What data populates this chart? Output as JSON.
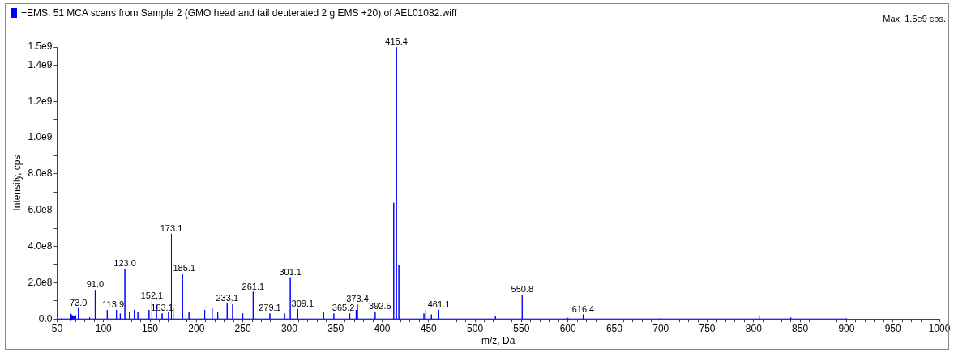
{
  "chart_data": {
    "type": "line",
    "title": "+EMS: 51 MCA scans from Sample 2 (GMO head and tail deuterated 2 g EMS +20) of AEL01082.wiff",
    "xlabel": "m/z, Da",
    "ylabel": "Intensity, cps",
    "grid": false,
    "legend": false,
    "marker": "none",
    "line_style": "solid",
    "xlim": [
      50,
      1000
    ],
    "xticks": [
      50,
      {
        "value": 60,
        "label": null
      },
      {
        "value": 70,
        "label": null
      },
      {
        "value": 80,
        "label": null
      },
      {
        "value": 90,
        "label": null
      },
      100,
      {
        "value": 110,
        "label": null
      },
      {
        "value": 120,
        "label": null
      },
      {
        "value": 130,
        "label": null
      },
      {
        "value": 140,
        "label": null
      },
      150,
      {
        "value": 160,
        "label": null
      },
      {
        "value": 170,
        "label": null
      },
      {
        "value": 180,
        "label": null
      },
      {
        "value": 190,
        "label": null
      },
      200,
      {
        "value": 210,
        "label": null
      },
      {
        "value": 220,
        "label": null
      },
      {
        "value": 230,
        "label": null
      },
      {
        "value": 240,
        "label": null
      },
      250,
      {
        "value": 260,
        "label": null
      },
      {
        "value": 270,
        "label": null
      },
      {
        "value": 280,
        "label": null
      },
      {
        "value": 290,
        "label": null
      },
      300,
      {
        "value": 310,
        "label": null
      },
      {
        "value": 320,
        "label": null
      },
      {
        "value": 330,
        "label": null
      },
      {
        "value": 340,
        "label": null
      },
      350,
      {
        "value": 360,
        "label": null
      },
      {
        "value": 370,
        "label": null
      },
      {
        "value": 380,
        "label": null
      },
      {
        "value": 390,
        "label": null
      },
      400,
      {
        "value": 410,
        "label": null
      },
      {
        "value": 420,
        "label": null
      },
      {
        "value": 430,
        "label": null
      },
      {
        "value": 440,
        "label": null
      },
      450,
      {
        "value": 460,
        "label": null
      },
      {
        "value": 470,
        "label": null
      },
      {
        "value": 480,
        "label": null
      },
      {
        "value": 490,
        "label": null
      },
      500,
      {
        "value": 510,
        "label": null
      },
      {
        "value": 520,
        "label": null
      },
      {
        "value": 530,
        "label": null
      },
      {
        "value": 540,
        "label": null
      },
      550,
      {
        "value": 560,
        "label": null
      },
      {
        "value": 570,
        "label": null
      },
      {
        "value": 580,
        "label": null
      },
      {
        "value": 590,
        "label": null
      },
      600,
      {
        "value": 610,
        "label": null
      },
      {
        "value": 620,
        "label": null
      },
      {
        "value": 630,
        "label": null
      },
      {
        "value": 640,
        "label": null
      },
      650,
      {
        "value": 660,
        "label": null
      },
      {
        "value": 670,
        "label": null
      },
      {
        "value": 680,
        "label": null
      },
      {
        "value": 690,
        "label": null
      },
      700,
      {
        "value": 710,
        "label": null
      },
      {
        "value": 720,
        "label": null
      },
      {
        "value": 730,
        "label": null
      },
      {
        "value": 740,
        "label": null
      },
      750,
      {
        "value": 760,
        "label": null
      },
      {
        "value": 770,
        "label": null
      },
      {
        "value": 780,
        "label": null
      },
      {
        "value": 790,
        "label": null
      },
      800,
      {
        "value": 810,
        "label": null
      },
      {
        "value": 820,
        "label": null
      },
      {
        "value": 830,
        "label": null
      },
      {
        "value": 840,
        "label": null
      },
      850,
      {
        "value": 860,
        "label": null
      },
      {
        "value": 870,
        "label": null
      },
      {
        "value": 880,
        "label": null
      },
      {
        "value": 890,
        "label": null
      },
      900,
      {
        "value": 910,
        "label": null
      },
      {
        "value": 920,
        "label": null
      },
      {
        "value": 930,
        "label": null
      },
      {
        "value": 940,
        "label": null
      },
      950,
      {
        "value": 960,
        "label": null
      },
      {
        "value": 970,
        "label": null
      },
      {
        "value": 980,
        "label": null
      },
      {
        "value": 990,
        "label": null
      },
      1000
    ],
    "ylim": [
      0,
      1500000000
    ],
    "yticks": [
      {
        "value": 0,
        "label": "0.0"
      },
      {
        "value": 100000000,
        "label": null
      },
      {
        "value": 200000000,
        "label": "2.0e8"
      },
      {
        "value": 300000000,
        "label": null
      },
      {
        "value": 400000000,
        "label": "4.0e8"
      },
      {
        "value": 500000000,
        "label": null
      },
      {
        "value": 600000000,
        "label": "6.0e8"
      },
      {
        "value": 700000000,
        "label": null
      },
      {
        "value": 800000000,
        "label": "8.0e8"
      },
      {
        "value": 900000000,
        "label": null
      },
      {
        "value": 1000000000,
        "label": "1.0e9"
      },
      {
        "value": 1100000000,
        "label": null
      },
      {
        "value": 1200000000,
        "label": "1.2e9"
      },
      {
        "value": 1300000000,
        "label": null
      },
      {
        "value": 1400000000,
        "label": "1.4e9"
      },
      {
        "value": 1500000000,
        "label": "1.5e9"
      }
    ],
    "series": [
      {
        "color": "#0000ff",
        "x": [
          50,
          55,
          55,
          55,
          68,
          68,
          68,
          70,
          70,
          70,
          73,
          73,
          73,
          85,
          85,
          85,
          91,
          91,
          91,
          104,
          104,
          104,
          113.9,
          113.9,
          113.9,
          118,
          118,
          118,
          123,
          123,
          123,
          128,
          128,
          128,
          133,
          133,
          133,
          137,
          137,
          137,
          149,
          149,
          149,
          152.1,
          152.1,
          152.1,
          157,
          157,
          157,
          163.1,
          163.1,
          163.1,
          170,
          170,
          170,
          173.1,
          173.1,
          173.1,
          175,
          175,
          175,
          185.1,
          185.1,
          185.1,
          192,
          192,
          192,
          209,
          209,
          209,
          217,
          217,
          217,
          223,
          223,
          223,
          233.1,
          233.1,
          233.1,
          239,
          239,
          239,
          250,
          250,
          250,
          261.1,
          261.1,
          261.1,
          279.1,
          279.1,
          279.1,
          295,
          295,
          295,
          301.1,
          301.1,
          301.1,
          309.1,
          309.1,
          309.1,
          318,
          318,
          318,
          337,
          337,
          337,
          348,
          348,
          348,
          365.2,
          365.2,
          365.2,
          372,
          372,
          372,
          373.4,
          373.4,
          373.4,
          392.5,
          392.5,
          392.5,
          412.5,
          412.5,
          412.5,
          415.4,
          415.4,
          415.4,
          418,
          418,
          418,
          445,
          445,
          445,
          447,
          447,
          447,
          453,
          453,
          453,
          461.1,
          461.1,
          461.1,
          522,
          522,
          522,
          550.8,
          550.8,
          550.8,
          600,
          600,
          600,
          616.4,
          616.4,
          616.4,
          700,
          700,
          700,
          806,
          806,
          806,
          840,
          840,
          840,
          900,
          900,
          900
        ],
        "values": [
          0,
          0,
          5000000,
          0,
          0,
          15000000,
          0,
          0,
          20000000,
          0,
          0,
          60000000,
          0,
          0,
          10000000,
          0,
          0,
          160000000,
          0,
          0,
          50000000,
          0,
          0,
          50000000,
          0,
          0,
          30000000,
          0,
          0,
          276000000,
          0,
          0,
          40000000,
          0,
          0,
          50000000,
          0,
          0,
          40000000,
          0,
          0,
          50000000,
          0,
          0,
          100000000,
          0,
          0,
          80000000,
          0,
          0,
          30000000,
          0,
          0,
          40000000,
          0,
          0,
          470000000,
          0,
          0,
          60000000,
          0,
          0,
          250000000,
          0,
          0,
          40000000,
          0,
          0,
          50000000,
          0,
          0,
          60000000,
          0,
          0,
          40000000,
          0,
          0,
          85000000,
          0,
          0,
          80000000,
          0,
          0,
          30000000,
          0,
          0,
          150000000,
          0,
          0,
          30000000,
          0,
          0,
          30000000,
          0,
          0,
          230000000,
          0,
          0,
          55000000,
          0,
          0,
          30000000,
          0,
          0,
          40000000,
          0,
          0,
          30000000,
          0,
          0,
          30000000,
          0,
          0,
          50000000,
          0,
          0,
          80000000,
          0,
          0,
          40000000,
          0,
          0,
          640000000,
          0,
          0,
          1500000000,
          0,
          0,
          300000000,
          0,
          0,
          30000000,
          0,
          0,
          50000000,
          0,
          0,
          25000000,
          0,
          0,
          50000000,
          0,
          0,
          15000000,
          0,
          0,
          135000000,
          0,
          0,
          6000000,
          0,
          0,
          25000000,
          0,
          0,
          5000000,
          0,
          0,
          20000000,
          0,
          0,
          8000000,
          0,
          0,
          3000000,
          0
        ]
      }
    ],
    "annotations": [
      "Max. 1.5e9 cps.",
      {
        "text": "73.0",
        "x": 73,
        "y": 60000000
      },
      {
        "text": "91.0",
        "x": 91,
        "y": 160000000
      },
      {
        "text": "113.9",
        "x": 113.9,
        "y": 50000000
      },
      {
        "text": "123.0",
        "x": 123,
        "y": 276000000
      },
      {
        "text": "152.1",
        "x": 152.1,
        "y": 100000000
      },
      {
        "text": "163.1",
        "x": 163.1,
        "y": 30000000
      },
      {
        "text": "173.1",
        "x": 173.1,
        "y": 470000000
      },
      {
        "text": "185.1",
        "x": 185.1,
        "y": 250000000
      },
      {
        "text": "233.1",
        "x": 233.1,
        "y": 85000000
      },
      {
        "text": "261.1",
        "x": 261.1,
        "y": 150000000
      },
      {
        "text": "279.1",
        "x": 279.1,
        "y": 30000000
      },
      {
        "text": "301.1",
        "x": 301.1,
        "y": 230000000
      },
      {
        "text": "309.1",
        "x": 309.1,
        "y": 55000000
      },
      {
        "text": "365.2",
        "x": 365.2,
        "y": 30000000
      },
      {
        "text": "373.4",
        "x": 373.4,
        "y": 80000000
      },
      {
        "text": "392.5",
        "x": 392.5,
        "y": 40000000
      },
      {
        "text": "415.4",
        "x": 415.4,
        "y": 1500000000
      },
      {
        "text": "461.1",
        "x": 461.1,
        "y": 50000000
      },
      {
        "text": "550.8",
        "x": 550.8,
        "y": 135000000
      },
      {
        "text": "616.4",
        "x": 616.4,
        "y": 25000000
      }
    ]
  }
}
